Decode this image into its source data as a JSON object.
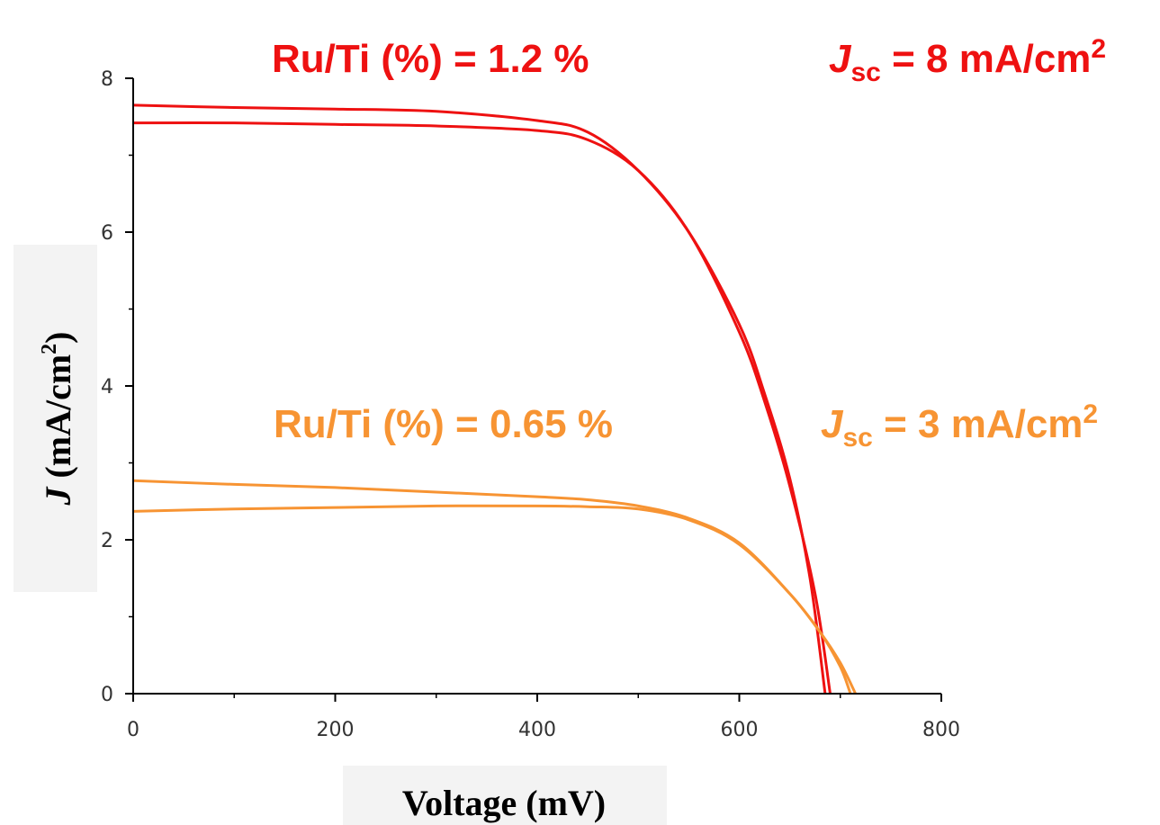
{
  "chart_data": {
    "type": "line",
    "xlabel": "Voltage (mV)",
    "ylabel_italic": "J",
    "ylabel_rest": " (mA/cm",
    "ylabel_sup": "2",
    "ylabel_close": ")",
    "xlim": [
      0,
      800
    ],
    "ylim": [
      0,
      8
    ],
    "x_ticks": [
      0,
      200,
      400,
      600,
      800
    ],
    "y_ticks": [
      0,
      2,
      4,
      6,
      8
    ],
    "grid": false,
    "legend": "none",
    "annotations": {
      "red_ratio": "Ru/Ti (%) = 1.2 %",
      "orange_ratio": "Ru/Ti (%) = 0.65 %",
      "jsc_symbol": "J",
      "jsc_sub": "sc",
      "red_jsc_value": " = 8 mA/cm",
      "orange_jsc_value": " = 3 mA/cm",
      "sup": "2"
    },
    "colors": {
      "red": "#ee1111",
      "orange": "#f79433"
    },
    "series": [
      {
        "color": "red",
        "x": [
          0,
          100,
          200,
          300,
          400,
          450,
          500,
          550,
          600,
          625,
          650,
          670,
          685
        ],
        "y": [
          7.65,
          7.62,
          7.6,
          7.57,
          7.45,
          7.3,
          6.8,
          6.0,
          4.8,
          3.9,
          2.8,
          1.5,
          0.0
        ]
      },
      {
        "color": "red",
        "x": [
          0,
          100,
          200,
          300,
          400,
          450,
          500,
          550,
          600,
          625,
          650,
          675,
          690
        ],
        "y": [
          7.42,
          7.42,
          7.4,
          7.38,
          7.32,
          7.2,
          6.8,
          6.0,
          4.7,
          3.8,
          2.7,
          1.3,
          0.0
        ]
      },
      {
        "color": "orange",
        "x": [
          0,
          100,
          200,
          300,
          400,
          450,
          500,
          550,
          600,
          650,
          680,
          700,
          710
        ],
        "y": [
          2.77,
          2.72,
          2.68,
          2.62,
          2.56,
          2.52,
          2.44,
          2.28,
          1.96,
          1.3,
          0.8,
          0.35,
          0.0
        ]
      },
      {
        "color": "orange",
        "x": [
          0,
          100,
          200,
          300,
          400,
          450,
          500,
          550,
          600,
          650,
          680,
          700,
          715
        ],
        "y": [
          2.37,
          2.4,
          2.42,
          2.44,
          2.44,
          2.43,
          2.4,
          2.26,
          1.94,
          1.3,
          0.8,
          0.4,
          0.0
        ]
      }
    ]
  }
}
